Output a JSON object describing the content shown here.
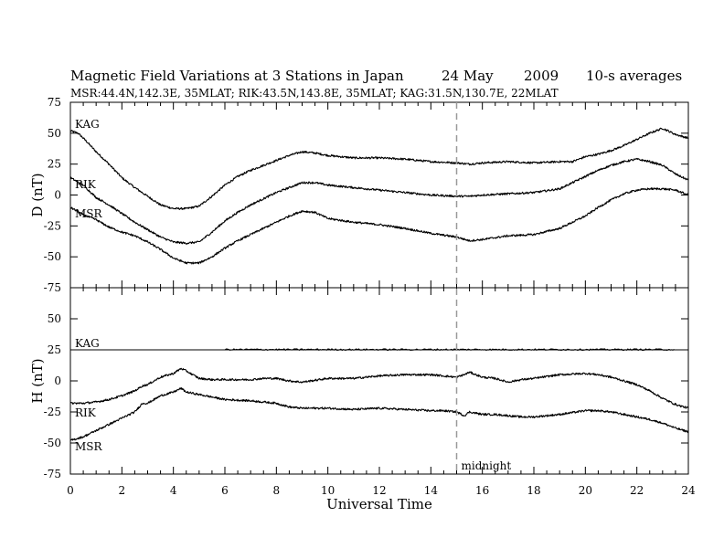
{
  "title": {
    "main": "Magnetic Field Variations at 3 Stations in Japan",
    "date": "24  May",
    "year": "2009",
    "avg": "10-s averages"
  },
  "subtitle": "MSR:44.4N,142.3E, 35MLAT;   RIK:43.5N,143.8E, 35MLAT;   KAG:31.5N,130.7E, 22MLAT",
  "chart_data": [
    {
      "type": "line",
      "panel": "top",
      "ylabel": "D (nT)",
      "ylim": [
        -75,
        75
      ],
      "yticks": [
        "75",
        "50",
        "25",
        "0",
        "-25",
        "-50",
        "-75"
      ],
      "xlim": [
        0,
        24
      ],
      "series": [
        {
          "name": "KAG",
          "x": [
            0,
            0.3,
            0.6,
            1,
            1.5,
            2,
            2.5,
            3,
            3.5,
            4,
            4.5,
            5,
            5.5,
            6,
            6.5,
            7,
            7.5,
            8,
            8.5,
            9,
            9.5,
            10,
            11,
            12,
            13,
            14,
            15,
            15.5,
            16,
            17,
            18,
            19,
            19.5,
            20,
            20.5,
            21,
            21.5,
            22,
            22.5,
            23,
            23.5,
            24
          ],
          "y": [
            52,
            50,
            44,
            35,
            25,
            14,
            6,
            -1,
            -8,
            -11,
            -11,
            -9,
            -1,
            8,
            15,
            20,
            24,
            28,
            32,
            35,
            34,
            32,
            30,
            30,
            29,
            27,
            26,
            25,
            26,
            27,
            26,
            27,
            27,
            31,
            33,
            36,
            40,
            45,
            50,
            54,
            49,
            46
          ]
        },
        {
          "name": "RIK",
          "x": [
            0,
            0.5,
            1,
            1.5,
            2,
            2.5,
            3,
            3.5,
            4,
            4.5,
            5,
            5.5,
            6,
            6.5,
            7,
            7.5,
            8,
            8.5,
            9,
            9.5,
            10,
            11,
            12,
            13,
            14,
            15,
            15.5,
            16,
            17,
            18,
            19,
            19.5,
            20,
            20.5,
            21,
            21.5,
            22,
            22.5,
            23,
            23.5,
            24
          ],
          "y": [
            14,
            8,
            -2,
            -8,
            -15,
            -22,
            -28,
            -34,
            -38,
            -39,
            -38,
            -30,
            -21,
            -14,
            -8,
            -3,
            2,
            6,
            10,
            10,
            8,
            6,
            4,
            2,
            0,
            -1,
            -1,
            0,
            1,
            2,
            5,
            10,
            15,
            20,
            24,
            27,
            29,
            27,
            24,
            17,
            12
          ]
        },
        {
          "name": "MSR",
          "x": [
            0,
            0.5,
            1,
            1.5,
            2,
            2.5,
            3,
            3.5,
            4,
            4.5,
            5,
            5.5,
            6,
            6.5,
            7,
            7.5,
            8,
            8.5,
            9,
            9.5,
            10,
            11,
            12,
            13,
            14,
            15,
            15.5,
            16,
            17,
            18,
            19,
            19.5,
            20,
            20.5,
            21,
            21.5,
            22,
            22.5,
            23,
            23.5,
            24
          ],
          "y": [
            -10,
            -16,
            -20,
            -26,
            -30,
            -33,
            -38,
            -44,
            -51,
            -55,
            -55,
            -50,
            -43,
            -37,
            -32,
            -27,
            -22,
            -17,
            -13,
            -14,
            -19,
            -22,
            -24,
            -27,
            -31,
            -34,
            -37,
            -36,
            -33,
            -32,
            -27,
            -22,
            -17,
            -10,
            -4,
            1,
            4,
            5,
            5,
            4,
            0
          ]
        }
      ]
    },
    {
      "type": "line",
      "panel": "bottom",
      "ylabel": "H (nT)",
      "ylim": [
        -75,
        75
      ],
      "yticks": [
        "75",
        "50",
        "25",
        "0",
        "-25",
        "-50",
        "-75"
      ],
      "xlim": [
        0,
        24
      ],
      "xlabel": "Universal Time",
      "xticks": [
        "0",
        "2",
        "4",
        "6",
        "8",
        "10",
        "12",
        "14",
        "16",
        "18",
        "20",
        "22",
        "24"
      ],
      "annotation": {
        "x": 15,
        "label": "midnight"
      },
      "series": [
        {
          "name": "KAG",
          "x": [
            0,
            24
          ],
          "y": [
            25,
            25
          ]
        },
        {
          "name": "RIK",
          "x": [
            0,
            0.5,
            1,
            1.5,
            2,
            2.5,
            2.8,
            3,
            3.5,
            4,
            4.3,
            4.5,
            5,
            5.5,
            6,
            7,
            7.5,
            8,
            8.5,
            9,
            10,
            11,
            12,
            13,
            14,
            14.5,
            15,
            15.3,
            15.5,
            16,
            16.5,
            17,
            17.5,
            18,
            19,
            20,
            20.5,
            21,
            21.5,
            22,
            22.5,
            23,
            23.5,
            24
          ],
          "y": [
            -18,
            -18,
            -17,
            -15,
            -12,
            -8,
            -4,
            -3,
            3,
            6,
            10,
            8,
            2,
            1,
            1,
            1,
            2,
            2,
            0,
            -1,
            2,
            2,
            4,
            5,
            5,
            4,
            3,
            5,
            7,
            3,
            2,
            -1,
            1,
            2,
            5,
            6,
            5,
            3,
            0,
            -3,
            -8,
            -14,
            -19,
            -22
          ]
        },
        {
          "name": "MSR",
          "x": [
            0,
            0.5,
            1,
            1.5,
            2,
            2.5,
            2.8,
            3,
            3.5,
            4,
            4.3,
            4.5,
            5,
            5.5,
            6,
            7,
            7.5,
            8,
            8.5,
            9,
            10,
            11,
            12,
            13,
            14,
            14.5,
            15,
            15.3,
            15.5,
            16,
            16.5,
            17,
            17.5,
            18,
            19,
            20,
            20.5,
            21,
            21.5,
            22,
            22.5,
            23,
            23.5,
            24
          ],
          "y": [
            -48,
            -45,
            -40,
            -35,
            -30,
            -25,
            -18,
            -18,
            -12,
            -9,
            -6,
            -9,
            -11,
            -13,
            -15,
            -16,
            -17,
            -18,
            -21,
            -22,
            -22,
            -23,
            -22,
            -23,
            -24,
            -24,
            -25,
            -28,
            -25,
            -27,
            -27,
            -28,
            -29,
            -29,
            -27,
            -24,
            -24,
            -25,
            -27,
            -29,
            -31,
            -34,
            -38,
            -41
          ]
        }
      ]
    }
  ]
}
